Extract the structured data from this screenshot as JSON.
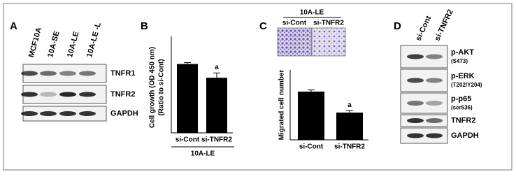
{
  "panel_a": {
    "label": "A",
    "lanes": [
      "MCF10A",
      "10A-SE",
      "10A-LE",
      "10A-LE -L"
    ],
    "blots": [
      "TNFR1",
      "TNFR2",
      "GAPDH"
    ]
  },
  "panel_b": {
    "label": "B",
    "chart_data": {
      "type": "bar",
      "y_label": [
        "Cell growth (OD 450 nm)",
        "(Ratio to si-Cont)"
      ],
      "categories": [
        "si-Cont",
        "si-TNFR2"
      ],
      "values": [
        1,
        0.8
      ],
      "errors": [
        0.02,
        0.07
      ],
      "annotation": "a",
      "group": "10A-LE",
      "ylim": [
        0,
        1.3
      ],
      "color": "#000000"
    }
  },
  "panel_c": {
    "label": "C",
    "group": "10A-LE",
    "image_labels": [
      "si-Cont",
      "si-TNFR2"
    ],
    "chart_data": {
      "type": "bar",
      "y_label": "Migrated cell number",
      "categories": [
        "si-Cont",
        "si-TNFR2"
      ],
      "values": [
        2300,
        1300
      ],
      "errors": [
        80,
        90
      ],
      "annotation": "a",
      "ylim": [
        0,
        3000
      ],
      "color": "#000000"
    }
  },
  "panel_d": {
    "label": "D",
    "lanes": [
      "si-Cont",
      "si-TNFR2"
    ],
    "blots": [
      {
        "name": "p-AKT",
        "site": "(S473)"
      },
      {
        "name": "p-ERK",
        "site": "(T202/Y204)"
      },
      {
        "name": "p-p65",
        "site": "(ser536)"
      },
      {
        "name": "TNFR2"
      },
      {
        "name": "GAPDH"
      }
    ]
  }
}
